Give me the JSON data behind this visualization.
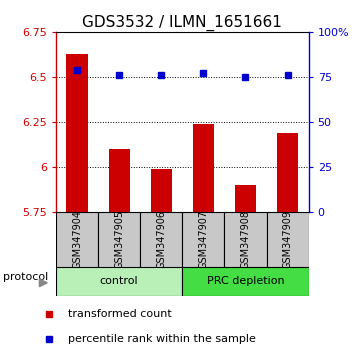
{
  "title": "GDS3532 / ILMN_1651661",
  "samples": [
    "GSM347904",
    "GSM347905",
    "GSM347906",
    "GSM347907",
    "GSM347908",
    "GSM347909"
  ],
  "red_values": [
    6.63,
    6.1,
    5.99,
    6.24,
    5.9,
    6.19
  ],
  "blue_pct": [
    79,
    76,
    76,
    77,
    75,
    76
  ],
  "ylim_left": [
    5.75,
    6.75
  ],
  "ylim_right": [
    0,
    100
  ],
  "yticks_left": [
    5.75,
    6.0,
    6.25,
    6.5,
    6.75
  ],
  "ytick_labels_left": [
    "5.75",
    "6",
    "6.25",
    "6.5",
    "6.75"
  ],
  "yticks_right": [
    0,
    25,
    50,
    75,
    100
  ],
  "ytick_labels_right": [
    "0",
    "25",
    "50",
    "75",
    "100%"
  ],
  "bar_bottom": 5.75,
  "bar_color": "#cc0000",
  "dot_color": "#0000cc",
  "left_axis_color": "#cc0000",
  "right_axis_color": "#0000cc",
  "grid_lines": [
    6.0,
    6.25,
    6.5
  ],
  "control_color": "#b8f0b8",
  "prc_color": "#44dd44",
  "sample_box_color": "#c8c8c8",
  "title_fontsize": 11,
  "tick_fontsize": 8,
  "sample_fontsize": 7,
  "group_fontsize": 8,
  "legend_fontsize": 8,
  "proto_fontsize": 8,
  "bar_width": 0.5,
  "legend_items": [
    {
      "color": "#cc0000",
      "label": "transformed count"
    },
    {
      "color": "#0000cc",
      "label": "percentile rank within the sample"
    }
  ]
}
